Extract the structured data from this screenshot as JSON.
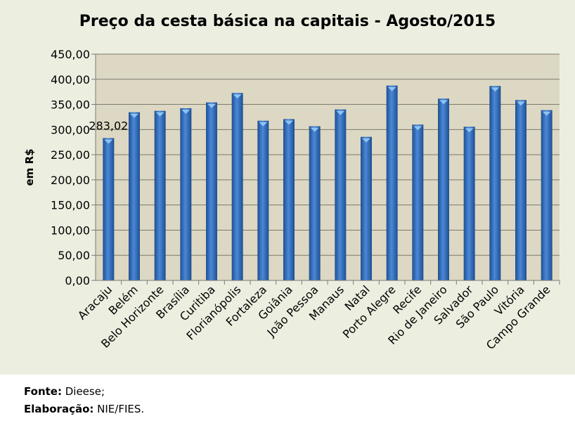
{
  "chart_data": {
    "type": "bar",
    "title": "Preço da cesta básica na capitais - Agosto/2015",
    "ylabel": "em R$",
    "xlabel": "",
    "ylim": [
      0,
      450
    ],
    "yticks": [
      "0,00",
      "50,00",
      "100,00",
      "150,00",
      "200,00",
      "250,00",
      "300,00",
      "350,00",
      "400,00",
      "450,00"
    ],
    "grid": true,
    "categories": [
      "Aracaju",
      "Belém",
      "Belo Horizonte",
      "Brasília",
      "Curitiba",
      "Florianópolis",
      "Fortaleza",
      "Goiânia",
      "João Pessoa",
      "Manaus",
      "Natal",
      "Porto Alegre",
      "Recife",
      "Rio de Janeiro",
      "Salvador",
      "São Paulo",
      "Vitória",
      "Campo Grande"
    ],
    "values": [
      283.02,
      334.4,
      337.2,
      342.4,
      354.0,
      372.7,
      317.6,
      320.8,
      306.6,
      340.0,
      285.5,
      387.5,
      309.8,
      361.5,
      305.6,
      386.6,
      358.7,
      338.6
    ],
    "data_labels": [
      {
        "category": "Aracaju",
        "text": "283,02"
      }
    ],
    "colors": {
      "bar": "#3a73c0",
      "plot_bg": "#ddd8c3",
      "chart_bg": "#ecefe0"
    }
  },
  "footer": {
    "source_label": "Fonte:",
    "source_value": " Dieese;",
    "made_label": "Elaboração:",
    "made_value": " NIE/FIES."
  }
}
